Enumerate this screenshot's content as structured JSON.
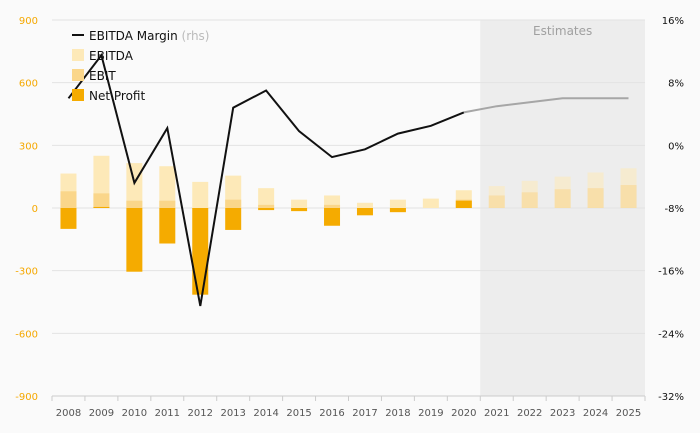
{
  "chart_data": {
    "type": "bar",
    "categories": [
      "2008",
      "2009",
      "2010",
      "2011",
      "2012",
      "2013",
      "2014",
      "2015",
      "2016",
      "2017",
      "2018",
      "2019",
      "2020",
      "2021",
      "2022",
      "2023",
      "2024",
      "2025"
    ],
    "estimates_from_index": 13,
    "estimates_label": "Estimates",
    "left_axis": {
      "ticks": [
        "900",
        "600",
        "300",
        "0",
        "-300",
        "-600",
        "-900"
      ],
      "ylim": [
        -900,
        900
      ]
    },
    "right_axis": {
      "ticks": [
        "16%",
        "8%",
        "0%",
        "-8%",
        "-16%",
        "-24%",
        "-32%"
      ],
      "ylim": [
        -32,
        16
      ]
    },
    "series": [
      {
        "name": "EBITDA",
        "kind": "bar",
        "color": "#fde9b8",
        "values": [
          165,
          250,
          215,
          200,
          125,
          155,
          95,
          40,
          60,
          25,
          40,
          45,
          85,
          105,
          130,
          150,
          170,
          190
        ]
      },
      {
        "name": "EBIT",
        "kind": "bar",
        "color": "#fad68a",
        "values": [
          80,
          70,
          35,
          35,
          -5,
          40,
          15,
          -5,
          15,
          -15,
          -15,
          0,
          40,
          60,
          75,
          90,
          95,
          110
        ]
      },
      {
        "name": "Net Profit",
        "kind": "bar",
        "color": "#f5ab00",
        "values": [
          -100,
          5,
          -305,
          -170,
          -415,
          -105,
          -10,
          -15,
          -85,
          -35,
          -20,
          0,
          35,
          0,
          0,
          0,
          0,
          0
        ]
      },
      {
        "name": "EBITDA Margin",
        "kind": "line",
        "axis": "rhs",
        "color": "#111111",
        "estimate_color": "#a6a6a6",
        "values": [
          6.0,
          11.5,
          -4.8,
          2.2,
          -20.5,
          4.8,
          7.0,
          1.8,
          -1.5,
          -0.5,
          1.5,
          2.5,
          4.2,
          5.0,
          5.5,
          6.0,
          6.0,
          6.0
        ]
      }
    ],
    "legend": {
      "line_label": "EBITDA Margin",
      "line_suffix": "(rhs)",
      "position": "top-left"
    },
    "grid": true
  }
}
